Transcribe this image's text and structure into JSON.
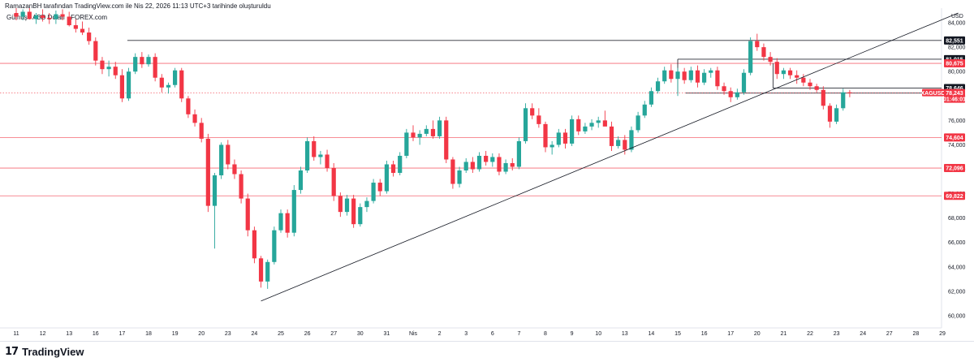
{
  "header": {
    "text": "RamazanBH tarafından TradingView.com ile Nis 22, 2026 11:13 UTC+3 tarihinde oluşturuldu"
  },
  "symbol": {
    "text": "Gümüş / ABD Doları · FOREX.com"
  },
  "footer": {
    "logo_mark": "17",
    "logo_text": "TradingView"
  },
  "colors": {
    "up": "#26a69a",
    "down": "#f23645",
    "level_red": "#f23645",
    "level_black": "#131722",
    "trend": "#131722",
    "price_line": "#f23645",
    "tag_text": "#ffffff"
  },
  "chart_data": {
    "type": "candlestick",
    "y_axis_currency": "USD",
    "ylim": [
      59000,
      85200
    ],
    "y_ticks": [
      {
        "v": 60000,
        "label": "60,000"
      },
      {
        "v": 62000,
        "label": "62,000"
      },
      {
        "v": 64000,
        "label": "64,000"
      },
      {
        "v": 66000,
        "label": "66,000"
      },
      {
        "v": 68000,
        "label": "68,000"
      },
      {
        "v": 70000,
        "label": "70,000"
      },
      {
        "v": 72000,
        "label": "72,000"
      },
      {
        "v": 74000,
        "label": "74,000"
      },
      {
        "v": 76000,
        "label": "76,000"
      },
      {
        "v": 78000,
        "label": "78,000"
      },
      {
        "v": 80000,
        "label": "80,000"
      },
      {
        "v": 82000,
        "label": "82,000"
      },
      {
        "v": 84000,
        "label": "84,000"
      }
    ],
    "x_ticks": [
      {
        "i": 0,
        "label": "11"
      },
      {
        "i": 1,
        "label": "12"
      },
      {
        "i": 2,
        "label": "13"
      },
      {
        "i": 3,
        "label": "16"
      },
      {
        "i": 4,
        "label": "17"
      },
      {
        "i": 5,
        "label": "18"
      },
      {
        "i": 6,
        "label": "19"
      },
      {
        "i": 7,
        "label": "20"
      },
      {
        "i": 8,
        "label": "23"
      },
      {
        "i": 9,
        "label": "24"
      },
      {
        "i": 10,
        "label": "25"
      },
      {
        "i": 11,
        "label": "26"
      },
      {
        "i": 12,
        "label": "27"
      },
      {
        "i": 13,
        "label": "30"
      },
      {
        "i": 14,
        "label": "31"
      },
      {
        "i": 15,
        "label": "Nis"
      },
      {
        "i": 16,
        "label": "2"
      },
      {
        "i": 17,
        "label": "3"
      },
      {
        "i": 18,
        "label": "6"
      },
      {
        "i": 19,
        "label": "7"
      },
      {
        "i": 20,
        "label": "8"
      },
      {
        "i": 21,
        "label": "9"
      },
      {
        "i": 22,
        "label": "10"
      },
      {
        "i": 23,
        "label": "13"
      },
      {
        "i": 24,
        "label": "14"
      },
      {
        "i": 25,
        "label": "15"
      },
      {
        "i": 26,
        "label": "16"
      },
      {
        "i": 27,
        "label": "17"
      },
      {
        "i": 28,
        "label": "20"
      },
      {
        "i": 29,
        "label": "21"
      },
      {
        "i": 30,
        "label": "22"
      },
      {
        "i": 31,
        "label": "23"
      },
      {
        "i": 32,
        "label": "24"
      },
      {
        "i": 33,
        "label": "27"
      },
      {
        "i": 34,
        "label": "28"
      },
      {
        "i": 35,
        "label": "29"
      }
    ],
    "candles": [
      [
        0.0,
        84800,
        85200,
        84200,
        84500
      ],
      [
        0.25,
        84500,
        85100,
        84200,
        84900
      ],
      [
        0.5,
        84900,
        85200,
        84400,
        84300
      ],
      [
        0.75,
        84300,
        84800,
        83900,
        84600
      ],
      [
        1.0,
        84600,
        85100,
        84100,
        84400
      ],
      [
        1.25,
        84400,
        84800,
        83900,
        84300
      ],
      [
        1.5,
        84300,
        85000,
        83900,
        84700
      ],
      [
        1.75,
        84700,
        85100,
        84200,
        84500
      ],
      [
        2.0,
        84500,
        84900,
        83700,
        83800
      ],
      [
        2.25,
        83800,
        84300,
        83200,
        83500
      ],
      [
        2.5,
        83500,
        84100,
        83000,
        83200
      ],
      [
        2.75,
        83200,
        83600,
        82200,
        82500
      ],
      [
        3.0,
        82500,
        82800,
        80500,
        80900
      ],
      [
        3.25,
        80900,
        81200,
        79800,
        80200
      ],
      [
        3.5,
        80200,
        80900,
        79600,
        80400
      ],
      [
        3.75,
        80400,
        80800,
        79400,
        79700
      ],
      [
        4.0,
        79700,
        80200,
        77500,
        77800
      ],
      [
        4.25,
        77800,
        80300,
        77600,
        80000
      ],
      [
        4.5,
        80000,
        81500,
        79800,
        81200
      ],
      [
        4.75,
        81200,
        81600,
        80300,
        80600
      ],
      [
        5.0,
        80600,
        81400,
        80400,
        81200
      ],
      [
        5.25,
        81200,
        81500,
        79200,
        79500
      ],
      [
        5.5,
        79500,
        79800,
        78300,
        78700
      ],
      [
        5.75,
        78700,
        79100,
        78200,
        78900
      ],
      [
        6.0,
        78900,
        80300,
        78700,
        80100
      ],
      [
        6.25,
        80100,
        80300,
        77500,
        77800
      ],
      [
        6.5,
        77800,
        78000,
        76200,
        76500
      ],
      [
        6.75,
        76500,
        76900,
        75500,
        75800
      ],
      [
        7.0,
        75800,
        76200,
        74200,
        74500
      ],
      [
        7.25,
        74500,
        74900,
        68500,
        69000
      ],
      [
        7.5,
        69000,
        71700,
        65500,
        71500
      ],
      [
        7.75,
        71500,
        74200,
        71200,
        74000
      ],
      [
        8.0,
        74000,
        74400,
        72000,
        72400
      ],
      [
        8.25,
        72400,
        72800,
        71200,
        71600
      ],
      [
        8.5,
        71600,
        71900,
        69200,
        69600
      ],
      [
        8.75,
        69600,
        70000,
        66500,
        67000
      ],
      [
        9.0,
        67000,
        67300,
        64300,
        64700
      ],
      [
        9.25,
        64700,
        64900,
        62300,
        62800
      ],
      [
        9.5,
        62800,
        64600,
        62200,
        64400
      ],
      [
        9.75,
        64400,
        67300,
        64200,
        67000
      ],
      [
        10.0,
        67000,
        68700,
        66800,
        68400
      ],
      [
        10.25,
        68400,
        68700,
        66400,
        66800
      ],
      [
        10.5,
        66800,
        70700,
        66500,
        70300
      ],
      [
        10.75,
        70300,
        72200,
        70000,
        71900
      ],
      [
        11.0,
        71900,
        74600,
        71700,
        74300
      ],
      [
        11.25,
        74300,
        74700,
        72700,
        73000
      ],
      [
        11.5,
        73000,
        73500,
        72400,
        73200
      ],
      [
        11.75,
        73200,
        73600,
        71800,
        72100
      ],
      [
        12.0,
        72100,
        72500,
        69400,
        69800
      ],
      [
        12.25,
        69800,
        70100,
        68100,
        68500
      ],
      [
        12.5,
        68500,
        69900,
        68200,
        69600
      ],
      [
        12.75,
        69600,
        69900,
        67200,
        67500
      ],
      [
        13.0,
        67500,
        69200,
        67300,
        68900
      ],
      [
        13.25,
        68900,
        69700,
        68500,
        69400
      ],
      [
        13.5,
        69400,
        71200,
        69200,
        70900
      ],
      [
        13.75,
        70900,
        71200,
        69800,
        70200
      ],
      [
        14.0,
        70200,
        72700,
        70000,
        72400
      ],
      [
        14.25,
        72400,
        72700,
        71400,
        71700
      ],
      [
        14.5,
        71700,
        73400,
        71500,
        73100
      ],
      [
        14.75,
        73100,
        75300,
        72900,
        75000
      ],
      [
        15.0,
        75000,
        75600,
        74300,
        74600
      ],
      [
        15.25,
        74600,
        75200,
        74000,
        74900
      ],
      [
        15.5,
        74900,
        75600,
        74700,
        75300
      ],
      [
        15.75,
        75300,
        76000,
        74500,
        74700
      ],
      [
        16.0,
        74700,
        76300,
        74500,
        76000
      ],
      [
        16.25,
        76000,
        76300,
        72500,
        72800
      ],
      [
        16.5,
        72800,
        73000,
        70400,
        70800
      ],
      [
        16.75,
        70800,
        72200,
        70500,
        71900
      ],
      [
        17.0,
        71900,
        72900,
        71700,
        72600
      ],
      [
        17.25,
        72600,
        73000,
        71700,
        72000
      ],
      [
        17.5,
        72000,
        73400,
        71800,
        73100
      ],
      [
        17.75,
        73100,
        73500,
        72300,
        72600
      ],
      [
        18.0,
        72600,
        73300,
        72200,
        73000
      ],
      [
        18.25,
        73000,
        73300,
        71500,
        71800
      ],
      [
        18.5,
        71800,
        72800,
        71600,
        72500
      ],
      [
        18.75,
        72500,
        72900,
        71900,
        72200
      ],
      [
        19.0,
        72200,
        74600,
        72000,
        74300
      ],
      [
        19.25,
        74300,
        77400,
        74100,
        77000
      ],
      [
        19.5,
        77000,
        77400,
        76100,
        76400
      ],
      [
        19.75,
        76400,
        77000,
        75400,
        75700
      ],
      [
        20.0,
        75700,
        75900,
        73400,
        73800
      ],
      [
        20.25,
        73800,
        74300,
        73200,
        74000
      ],
      [
        20.5,
        74000,
        75300,
        73800,
        75000
      ],
      [
        20.75,
        75000,
        75300,
        73700,
        74100
      ],
      [
        21.0,
        74100,
        76400,
        73900,
        76100
      ],
      [
        21.25,
        76100,
        76400,
        74800,
        75100
      ],
      [
        21.5,
        75100,
        75800,
        74900,
        75500
      ],
      [
        21.75,
        75500,
        76100,
        75200,
        75800
      ],
      [
        22.0,
        75800,
        76300,
        75400,
        76000
      ],
      [
        22.25,
        76000,
        76800,
        75700,
        75500
      ],
      [
        22.5,
        75500,
        75900,
        73500,
        73900
      ],
      [
        22.75,
        73900,
        74700,
        73700,
        74400
      ],
      [
        23.0,
        74400,
        74800,
        73200,
        73600
      ],
      [
        23.25,
        73600,
        75500,
        73400,
        75200
      ],
      [
        23.5,
        75200,
        76700,
        75000,
        76400
      ],
      [
        23.75,
        76400,
        77600,
        76200,
        77300
      ],
      [
        24.0,
        77300,
        78700,
        77100,
        78400
      ],
      [
        24.25,
        78400,
        79500,
        78200,
        79200
      ],
      [
        24.5,
        79200,
        80400,
        79000,
        80100
      ],
      [
        24.75,
        80100,
        80600,
        79100,
        79400
      ],
      [
        25.0,
        79400,
        80300,
        78000,
        80000
      ],
      [
        25.25,
        80000,
        80300,
        79000,
        79300
      ],
      [
        25.5,
        79300,
        80400,
        79100,
        80100
      ],
      [
        25.75,
        80100,
        80500,
        78700,
        79100
      ],
      [
        26.0,
        79100,
        80200,
        78900,
        79900
      ],
      [
        26.25,
        79900,
        80300,
        79500,
        80100
      ],
      [
        26.5,
        80100,
        80400,
        78500,
        78800
      ],
      [
        26.75,
        78800,
        79100,
        78100,
        78400
      ],
      [
        27.0,
        78400,
        78700,
        77500,
        77900
      ],
      [
        27.25,
        77900,
        78600,
        77700,
        78300
      ],
      [
        27.5,
        78300,
        80200,
        78100,
        79900
      ],
      [
        27.75,
        79900,
        82800,
        79700,
        82500
      ],
      [
        28.0,
        82500,
        83100,
        81700,
        82000
      ],
      [
        28.25,
        82000,
        82300,
        80900,
        81200
      ],
      [
        28.5,
        81200,
        81600,
        80500,
        80800
      ],
      [
        28.75,
        80800,
        81100,
        79400,
        79800
      ],
      [
        29.0,
        79800,
        80300,
        79400,
        80100
      ],
      [
        29.25,
        80100,
        80300,
        79400,
        79700
      ],
      [
        29.5,
        79700,
        80100,
        79000,
        79500
      ],
      [
        29.75,
        79500,
        79800,
        78800,
        79100
      ],
      [
        30.0,
        79100,
        79400,
        78500,
        78800
      ],
      [
        30.25,
        78800,
        79000,
        78300,
        78500
      ],
      [
        30.5,
        78500,
        78800,
        76900,
        77200
      ],
      [
        30.75,
        77200,
        77400,
        75400,
        75900
      ],
      [
        31.0,
        75900,
        77300,
        75700,
        77000
      ],
      [
        31.25,
        77000,
        78600,
        76800,
        78300
      ],
      [
        31.5,
        78300,
        78500,
        77900,
        78230
      ]
    ],
    "levels": [
      {
        "name": "level-82551",
        "value": 82551,
        "label": "82,551",
        "color": "black",
        "from": 4.2
      },
      {
        "name": "level-81015",
        "value": 81015,
        "label": "81,015",
        "color": "black",
        "from": 25.0
      },
      {
        "name": "level-80675",
        "value": 80675,
        "label": "80,675",
        "color": "red",
        "from": -1
      },
      {
        "name": "level-78646",
        "value": 78646,
        "label": "78,646",
        "color": "black",
        "from": 28.6
      },
      {
        "name": "level-78239",
        "value": 78239,
        "label": "78,239",
        "color": "black",
        "from": 25.3
      },
      {
        "name": "level-74604",
        "value": 74604,
        "label": "74,604",
        "color": "red",
        "from": -1
      },
      {
        "name": "level-72096",
        "value": 72096,
        "label": "72,096",
        "color": "red",
        "from": -1
      },
      {
        "name": "level-69822",
        "value": 69822,
        "label": "69,822",
        "color": "red",
        "from": -1
      }
    ],
    "box_lines": [
      {
        "name": "box-upper",
        "from": 25.0,
        "top": 81015,
        "bottom": 78239
      },
      {
        "name": "box-lower",
        "from": 28.6,
        "top": 80675,
        "bottom": 78646
      }
    ],
    "trendline": {
      "from": {
        "i": 9.25,
        "v": 61200
      },
      "to": {
        "i": 35.6,
        "v": 84800
      }
    },
    "current_price": {
      "symbol": "XAGUSD",
      "value": 78243,
      "label": "78,243",
      "countdown": "01:46:01"
    }
  }
}
